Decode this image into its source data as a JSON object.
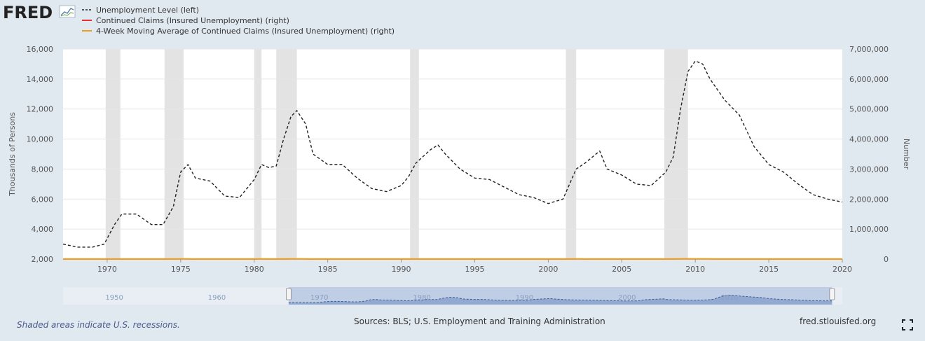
{
  "brand": {
    "name": "FRED"
  },
  "legend": [
    {
      "label": "Unemployment Level (left)",
      "style": "dashed",
      "color": "#222222"
    },
    {
      "label": "Continued Claims (Insured Unemployment) (right)",
      "style": "solid",
      "color": "#e8312a"
    },
    {
      "label": "4-Week Moving Average of Continued Claims (Insured Unemployment) (right)",
      "style": "solid",
      "color": "#f39c12"
    }
  ],
  "footer": {
    "note": "Shaded areas indicate U.S. recessions.",
    "sources": "Sources: BLS; U.S. Employment and Training Administration",
    "url": "fred.stlouisfed.org"
  },
  "chart_data": {
    "type": "line",
    "xlim": [
      1967,
      2020
    ],
    "x_ticks": [
      "1970",
      "1975",
      "1980",
      "1985",
      "1990",
      "1995",
      "2000",
      "2005",
      "2010",
      "2015",
      "2020"
    ],
    "y_left": {
      "label": "Thousands of Persons",
      "lim": [
        2000,
        16000
      ],
      "ticks": [
        "2,000",
        "4,000",
        "6,000",
        "8,000",
        "10,000",
        "12,000",
        "14,000",
        "16,000"
      ]
    },
    "y_right": {
      "label": "Number",
      "lim": [
        0,
        7000000
      ],
      "ticks": [
        "0",
        "1,000,000",
        "2,000,000",
        "3,000,000",
        "4,000,000",
        "5,000,000",
        "6,000,000",
        "7,000,000"
      ]
    },
    "recessions": [
      [
        1969.9,
        1970.9
      ],
      [
        1973.9,
        1975.2
      ],
      [
        1980.0,
        1980.5
      ],
      [
        1981.5,
        1982.9
      ],
      [
        1990.6,
        1991.2
      ],
      [
        2001.2,
        2001.9
      ],
      [
        2007.9,
        2009.5
      ]
    ],
    "series": [
      {
        "name": "Unemployment Level (left)",
        "axis": "left",
        "x": [
          1967,
          1968,
          1969,
          1969.8,
          1970.5,
          1971,
          1971.5,
          1972,
          1973,
          1973.8,
          1974.5,
          1975,
          1975.5,
          1976,
          1977,
          1978,
          1979,
          1980,
          1980.5,
          1981,
          1981.5,
          1982,
          1982.5,
          1982.9,
          1983.5,
          1984,
          1985,
          1986,
          1987,
          1988,
          1989,
          1990,
          1990.5,
          1991,
          1992,
          1992.5,
          1993,
          1994,
          1995,
          1996,
          1997,
          1998,
          1999,
          2000,
          2001,
          2001.9,
          2002.5,
          2003,
          2003.5,
          2004,
          2005,
          2006,
          2007,
          2008,
          2008.5,
          2009,
          2009.5,
          2010,
          2010.5,
          2011,
          2012,
          2013,
          2014,
          2015,
          2016,
          2017,
          2018,
          2019,
          2020
        ],
        "values": [
          3000,
          2800,
          2800,
          3000,
          4300,
          5000,
          5000,
          5000,
          4300,
          4300,
          5500,
          7800,
          8300,
          7400,
          7200,
          6200,
          6100,
          7300,
          8300,
          8100,
          8200,
          10000,
          11500,
          11900,
          11000,
          9000,
          8300,
          8300,
          7400,
          6700,
          6500,
          6900,
          7500,
          8400,
          9300,
          9600,
          9000,
          8000,
          7400,
          7300,
          6800,
          6300,
          6100,
          5700,
          6000,
          8000,
          8400,
          8800,
          9200,
          8000,
          7600,
          7000,
          6900,
          7800,
          8800,
          12000,
          14500,
          15200,
          15000,
          14000,
          12600,
          11600,
          9500,
          8300,
          7800,
          7000,
          6300,
          6000,
          5800
        ]
      },
      {
        "name": "Continued Claims (Insured Unemployment) (right)",
        "axis": "right",
        "x": [
          1967,
          1968,
          1969,
          1969.9,
          1970.4,
          1970.8,
          1971.5,
          1972,
          1972.5,
          1973,
          1973.8,
          1974.5,
          1975,
          1975.3,
          1975.8,
          1976.5,
          1977,
          1978,
          1979,
          1980,
          1980.5,
          1980.9,
          1981.5,
          1982,
          1982.5,
          1982.9,
          1983.3,
          1983.8,
          1984.5,
          1985,
          1986,
          1987,
          1988,
          1989,
          1990,
          1990.5,
          1991,
          1991.5,
          1992,
          1992.5,
          1993,
          1994,
          1995,
          1996,
          1997,
          1998,
          1999,
          2000,
          2001,
          2001.6,
          2002,
          2002.5,
          2003,
          2003.5,
          2004,
          2005,
          2006,
          2007,
          2008,
          2008.5,
          2009,
          2009.3,
          2009.7,
          2010,
          2010.5,
          2011,
          2011.5,
          2012,
          2013,
          2014,
          2015,
          2016,
          2017,
          2018,
          2018.7,
          2019,
          2019.5,
          2020
        ],
        "values": [
          1500,
          1400,
          1400,
          1400,
          2100,
          2500,
          2600,
          2500,
          2300,
          2000,
          2200,
          3000,
          4200,
          4400,
          3500,
          3300,
          3200,
          2800,
          2800,
          3000,
          4000,
          3300,
          3000,
          3400,
          4200,
          4600,
          3700,
          3000,
          2700,
          2800,
          2900,
          2600,
          2000,
          2100,
          2400,
          2800,
          3400,
          3200,
          3200,
          2800,
          2800,
          2700,
          2700,
          2600,
          2500,
          2300,
          2300,
          2300,
          2600,
          3400,
          3600,
          3300,
          3500,
          3200,
          2900,
          2700,
          2600,
          2600,
          2900,
          3400,
          5500,
          6300,
          5400,
          4700,
          4200,
          3700,
          3500,
          3400,
          3100,
          2600,
          2300,
          2200,
          2100,
          1900,
          1700,
          1800,
          1700,
          1800
        ]
      },
      {
        "name": "4-Week Moving Average of Continued Claims (Insured Unemployment) (right)",
        "axis": "right",
        "x": [
          1967,
          1968,
          1969,
          1969.9,
          1970.4,
          1970.8,
          1971.5,
          1972,
          1972.5,
          1973,
          1973.8,
          1974.5,
          1975,
          1975.3,
          1975.8,
          1976.5,
          1977,
          1978,
          1979,
          1980,
          1980.5,
          1980.9,
          1981.5,
          1982,
          1982.5,
          1982.9,
          1983.3,
          1983.8,
          1984.5,
          1985,
          1986,
          1987,
          1988,
          1989,
          1990,
          1990.5,
          1991,
          1991.5,
          1992,
          1992.5,
          1993,
          1994,
          1995,
          1996,
          1997,
          1998,
          1999,
          2000,
          2001,
          2001.6,
          2002,
          2002.5,
          2003,
          2003.5,
          2004,
          2005,
          2006,
          2007,
          2008,
          2008.5,
          2009,
          2009.3,
          2009.7,
          2010,
          2010.5,
          2011,
          2011.5,
          2012,
          2013,
          2014,
          2015,
          2016,
          2017,
          2018,
          2018.7,
          2019,
          2019.5,
          2020
        ],
        "values": [
          1500,
          1400,
          1400,
          1400,
          2100,
          2500,
          2600,
          2500,
          2300,
          2000,
          2200,
          3000,
          4200,
          4400,
          3500,
          3300,
          3200,
          2800,
          2800,
          3000,
          4000,
          3300,
          3000,
          3400,
          4200,
          4600,
          3700,
          3000,
          2700,
          2800,
          2900,
          2600,
          2000,
          2100,
          2400,
          2800,
          3400,
          3200,
          3200,
          2800,
          2800,
          2700,
          2700,
          2600,
          2500,
          2300,
          2300,
          2300,
          2600,
          3400,
          3600,
          3300,
          3500,
          3200,
          2900,
          2700,
          2600,
          2600,
          2900,
          3400,
          5500,
          6300,
          5400,
          4700,
          4200,
          3700,
          3500,
          3400,
          3100,
          2600,
          2300,
          2200,
          2100,
          1900,
          1700,
          1800,
          1700,
          1800
        ]
      }
    ],
    "navigator": {
      "xlim": [
        1945,
        2021
      ],
      "labels": [
        "1950",
        "1960",
        "1970",
        "1980",
        "1990",
        "2000",
        "2010"
      ],
      "selection": [
        1967,
        2020
      ]
    }
  }
}
